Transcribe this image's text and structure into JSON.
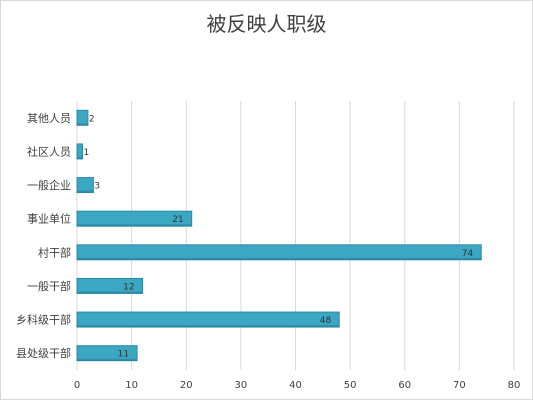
{
  "chart_data": {
    "type": "bar",
    "orientation": "horizontal",
    "title": "被反映人职级",
    "categories": [
      "其他人员",
      "社区人员",
      "一般企业",
      "事业单位",
      "村干部",
      "一般干部",
      "乡科级干部",
      "县处级干部"
    ],
    "values": [
      2,
      1,
      3,
      21,
      74,
      12,
      48,
      11
    ],
    "xlim": [
      0,
      80
    ],
    "xticks": [
      0,
      10,
      20,
      30,
      40,
      50,
      60,
      70,
      80
    ],
    "grid": true,
    "legend": "none",
    "colors": {
      "bar": "#3ca7c2",
      "bar_edge": "#2b8aa3",
      "grid": "#d9d9d9",
      "text": "#404040"
    }
  }
}
